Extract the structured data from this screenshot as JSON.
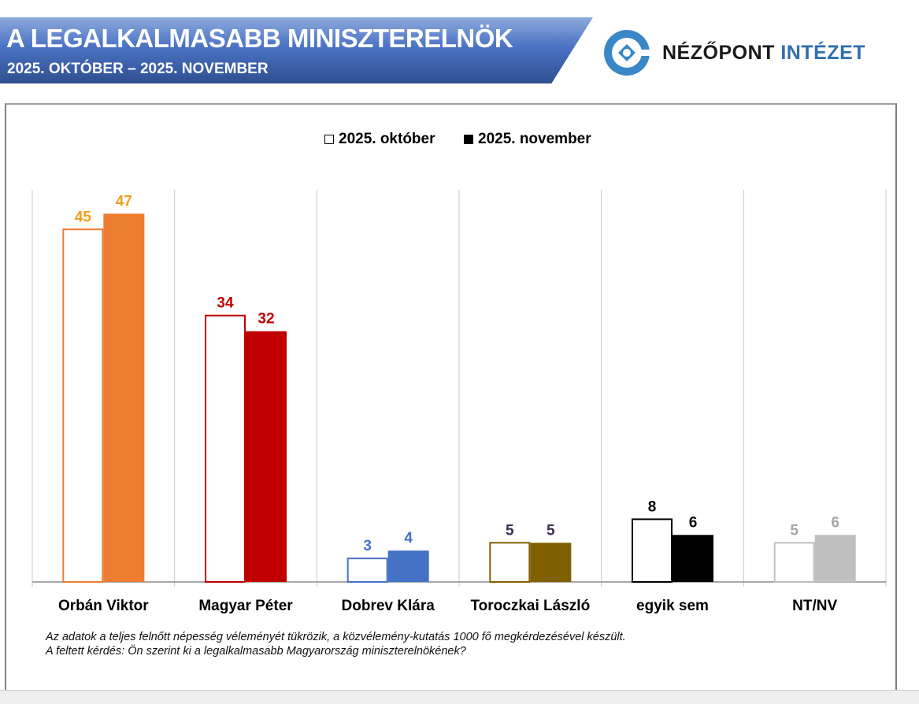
{
  "header": {
    "title": "A LEGALKALMASABB MINISZTERELNÖK",
    "subtitle": "2025. OKTÓBER – 2025. NOVEMBER"
  },
  "logo": {
    "name_part1": "NÉZŐPONT",
    "name_part2": "INTÉZET",
    "icon": "nezopont-logo-icon"
  },
  "chart_data": {
    "type": "bar",
    "categories": [
      "Orbán Viktor",
      "Magyar Péter",
      "Dobrev Klára",
      "Toroczkai László",
      "egyik sem",
      "NT/NV"
    ],
    "series": [
      {
        "name": "2025. október",
        "values": [
          45,
          34,
          3,
          5,
          8,
          5
        ]
      },
      {
        "name": "2025. november",
        "values": [
          47,
          32,
          4,
          5,
          6,
          6
        ]
      }
    ],
    "colors": [
      "#ED7D31",
      "#C00000",
      "#4472C4",
      "#7F6000",
      "#000000",
      "#BFBFBF"
    ],
    "label_colors": [
      "#F0A020",
      "#C00000",
      "#4472C4",
      "#3B2E50",
      "#000000",
      "#A6A6A6"
    ],
    "legend": "top",
    "grid": false,
    "ylim": [
      0,
      50
    ]
  },
  "note": {
    "line1": "Az adatok a teljes felnőtt népesség véleményét tükrözik, a közvélemény-kutatás 1000 fő megkérdezésével készült.",
    "line2": "A feltett kérdés: Ön szerint ki a legalkalmasabb Magyarország miniszterelnökének?"
  }
}
